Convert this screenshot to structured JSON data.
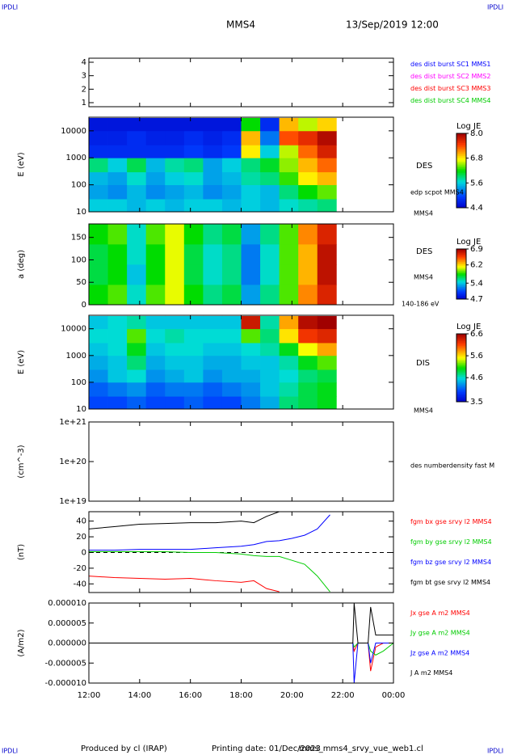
{
  "header": {
    "corner_labels": [
      "IPDLI",
      "IPDLI",
      "IPDLI",
      "IPDLI"
    ],
    "spacecraft": "MMS4",
    "date": "13/Sep/2019 12:00"
  },
  "footer": {
    "produced": "Produced by cl (IRAP)",
    "printing_date": "Printing date: 01/Dec/2023",
    "file": "mms_mms4_srvy_vue_web1.cl"
  },
  "chart_data": [
    {
      "type": "line",
      "ylim": [
        0.7,
        4.3
      ],
      "yticks": [
        1,
        2,
        3,
        4
      ],
      "series": [
        {
          "name": "des dist burst SC1 MMS1",
          "color": "#0000ff",
          "values": []
        },
        {
          "name": "des dist burst SC2 MMS2",
          "color": "#ff00ff",
          "values": []
        },
        {
          "name": "des dist burst SC3 MMS3",
          "color": "#ff0000",
          "values": []
        },
        {
          "name": "des dist burst SC4 MMS4",
          "color": "#00cc00",
          "values": []
        }
      ],
      "x": []
    },
    {
      "type": "heatmap",
      "ylabel": "E (eV)",
      "log": true,
      "ylim": [
        10,
        32000
      ],
      "yticks": [
        10,
        100,
        1000,
        10000
      ],
      "side_labels": [
        "DES",
        "edp scpot MMS4",
        "MMS4"
      ],
      "xbins": [
        12,
        12.75,
        13.5,
        14.25,
        15,
        15.75,
        16.5,
        17.25,
        18,
        18.75,
        19.5,
        20.25,
        21,
        21.75
      ],
      "ybins": [
        10,
        30,
        100,
        300,
        1000,
        3000,
        10000,
        30000
      ],
      "values": [
        [
          5.6,
          5.6,
          5.5,
          5.6,
          5.5,
          5.6,
          5.6,
          5.5,
          5.6,
          5.5,
          5.7,
          5.8,
          5.9
        ],
        [
          5.4,
          5.3,
          5.5,
          5.3,
          5.4,
          5.5,
          5.3,
          5.4,
          5.6,
          5.5,
          5.9,
          6.2,
          6.4
        ],
        [
          5.5,
          5.4,
          5.7,
          5.4,
          5.6,
          5.7,
          5.4,
          5.5,
          5.8,
          5.9,
          6.3,
          6.8,
          7.0
        ],
        [
          5.9,
          5.6,
          6.0,
          5.5,
          5.8,
          5.9,
          5.4,
          5.6,
          5.9,
          6.1,
          6.5,
          7.0,
          7.3
        ],
        [
          4.8,
          4.8,
          4.8,
          4.8,
          4.8,
          4.9,
          4.8,
          4.9,
          6.8,
          5.6,
          6.6,
          7.3,
          7.7
        ],
        [
          4.7,
          4.7,
          4.8,
          4.7,
          4.7,
          4.8,
          4.7,
          4.8,
          7.0,
          5.2,
          7.4,
          7.6,
          7.9
        ],
        [
          4.6,
          4.6,
          4.6,
          4.6,
          4.6,
          4.6,
          4.6,
          4.6,
          6.2,
          4.8,
          7.0,
          6.6,
          6.9
        ]
      ],
      "colorbar": {
        "label": "Log JE",
        "lim": [
          4.4,
          8.0
        ],
        "ticks": [
          4.4,
          5.6,
          6.8,
          {
            "value": 8,
            "label": "8.0"
          }
        ]
      }
    },
    {
      "type": "heatmap",
      "ylabel": "a (deg)",
      "ylim": [
        0,
        180
      ],
      "yticks": [
        0,
        50,
        100,
        150
      ],
      "side_labels": [
        "DES",
        "MMS4",
        "140-186 eV"
      ],
      "xbins": [
        12,
        12.75,
        13.5,
        14.25,
        15,
        15.75,
        16.5,
        17.25,
        18,
        18.75,
        19.5,
        20.25,
        21,
        21.75
      ],
      "ybins": [
        0,
        45,
        90,
        135,
        180
      ],
      "values": [
        [
          5.8,
          5.9,
          5.5,
          5.9,
          6.1,
          5.8,
          5.6,
          5.7,
          5.3,
          5.6,
          5.9,
          6.4,
          6.7
        ],
        [
          5.7,
          5.8,
          5.4,
          5.8,
          6.1,
          5.7,
          5.5,
          5.6,
          5.2,
          5.5,
          5.9,
          6.3,
          6.8
        ],
        [
          5.7,
          5.8,
          5.5,
          5.8,
          6.1,
          5.7,
          5.5,
          5.6,
          5.2,
          5.5,
          5.9,
          6.3,
          6.8
        ],
        [
          5.8,
          5.9,
          5.5,
          5.9,
          6.1,
          5.8,
          5.6,
          5.7,
          5.3,
          5.6,
          5.9,
          6.4,
          6.7
        ]
      ],
      "colorbar": {
        "label": "Log JE",
        "lim": [
          4.7,
          6.9
        ],
        "ticks": [
          4.7,
          5.4,
          6.2,
          6.9
        ]
      }
    },
    {
      "type": "heatmap",
      "ylabel": "E (eV)",
      "log": true,
      "ylim": [
        10,
        32000
      ],
      "yticks": [
        10,
        100,
        1000,
        10000
      ],
      "side_labels": [
        "DIS",
        "MMS4"
      ],
      "xbins": [
        12,
        12.75,
        13.5,
        14.25,
        15,
        15.75,
        16.5,
        17.25,
        18,
        18.75,
        19.5,
        20.25,
        21,
        21.75
      ],
      "ybins": [
        10,
        30,
        100,
        300,
        1000,
        3000,
        10000,
        30000
      ],
      "values": [
        [
          4.0,
          4.0,
          4.1,
          4.0,
          4.0,
          4.1,
          4.0,
          4.0,
          4.2,
          4.4,
          4.8,
          4.9,
          5.0
        ],
        [
          4.1,
          4.2,
          4.3,
          4.1,
          4.2,
          4.2,
          4.1,
          4.2,
          4.3,
          4.5,
          4.7,
          4.9,
          5.0
        ],
        [
          4.3,
          4.5,
          4.6,
          4.3,
          4.4,
          4.5,
          4.3,
          4.4,
          4.4,
          4.5,
          4.6,
          4.8,
          4.9
        ],
        [
          4.4,
          4.5,
          4.8,
          4.4,
          4.5,
          4.5,
          4.4,
          4.4,
          4.5,
          4.5,
          4.7,
          5.0,
          5.2
        ],
        [
          4.5,
          4.6,
          5.0,
          4.5,
          4.6,
          4.6,
          4.5,
          4.5,
          4.6,
          4.7,
          5.0,
          5.5,
          5.8
        ],
        [
          4.6,
          4.6,
          5.2,
          4.6,
          4.7,
          4.6,
          4.6,
          4.6,
          5.2,
          4.8,
          5.6,
          6.2,
          6.3
        ],
        [
          4.5,
          4.6,
          4.7,
          4.5,
          4.5,
          4.5,
          4.5,
          4.5,
          6.4,
          4.7,
          5.8,
          6.5,
          6.6
        ]
      ],
      "colorbar": {
        "label": "Log JE",
        "lim": [
          3.5,
          6.6
        ],
        "ticks": [
          3.5,
          4.6,
          5.6,
          6.6
        ]
      }
    },
    {
      "type": "line",
      "ylabel": "(cm^-3)",
      "log": true,
      "ylim": [
        1e+19,
        1e+21
      ],
      "yticks": [
        {
          "value": 1e+19,
          "label": "1e+19"
        },
        {
          "value": 1e+20,
          "label": "1e+20"
        },
        {
          "value": 1e+21,
          "label": "1e+21"
        }
      ],
      "side_labels": [
        "des numberdensity fast M"
      ],
      "x": [],
      "series": []
    },
    {
      "type": "line",
      "ylabel": "(nT)",
      "ylim": [
        -51,
        52
      ],
      "yticks": [
        -40,
        -20,
        0,
        20,
        40
      ],
      "reference_line": 0,
      "x": [
        12,
        13,
        14,
        15,
        16,
        17,
        18,
        18.5,
        19,
        19.5,
        20,
        20.5,
        21,
        21.5
      ],
      "series": [
        {
          "name": "fgm bx gse srvy l2 MMS4",
          "color": "#ff0000",
          "values": [
            -30,
            -32,
            -33,
            -34,
            -33,
            -36,
            -38,
            -36,
            -46,
            -50,
            null,
            null,
            null,
            null
          ]
        },
        {
          "name": "fgm by gse srvy l2 MMS4",
          "color": "#00cc00",
          "values": [
            1,
            1,
            1,
            1,
            0,
            0,
            -2,
            -4,
            -5,
            -5,
            -10,
            -15,
            -30,
            -50
          ]
        },
        {
          "name": "fgm bz gse srvy l2 MMS4",
          "color": "#0000ff",
          "values": [
            3,
            3,
            4,
            4,
            4,
            6,
            8,
            10,
            14,
            15,
            18,
            22,
            30,
            48
          ]
        },
        {
          "name": "fgm bt gse srvy l2 MMS4",
          "color": "#000000",
          "values": [
            30,
            33,
            36,
            37,
            38,
            38,
            40,
            38,
            46,
            52,
            null,
            null,
            null,
            null
          ]
        }
      ]
    },
    {
      "type": "line",
      "ylabel": "(A/m2)",
      "ylim": [
        -1e-05,
        1e-05
      ],
      "yticks": [
        {
          "value": -1e-05,
          "label": "-0.000010"
        },
        {
          "value": -5e-06,
          "label": "-0.000005"
        },
        {
          "value": 0,
          "label": "0.000000"
        },
        {
          "value": 5e-06,
          "label": "0.000005"
        },
        {
          "value": 1e-05,
          "label": "0.000010"
        }
      ],
      "xlim": [
        12,
        24
      ],
      "xticks": [
        {
          "value": 12,
          "label": "12:00"
        },
        {
          "value": 14,
          "label": "14:00"
        },
        {
          "value": 16,
          "label": "16:00"
        },
        {
          "value": 18,
          "label": "18:00"
        },
        {
          "value": 20,
          "label": "20:00"
        },
        {
          "value": 22,
          "label": "22:00"
        },
        {
          "value": 24,
          "label": "00:00"
        }
      ],
      "x": [
        12,
        16,
        20,
        22,
        22.4,
        22.45,
        22.6,
        23.0,
        23.1,
        23.3,
        23.6,
        24
      ],
      "series": [
        {
          "name": "Jx gse A m2 MMS4",
          "color": "#ff0000",
          "values": [
            0,
            0,
            0,
            0,
            0,
            -2e-06,
            0,
            0,
            -7e-06,
            -1e-06,
            0,
            0
          ]
        },
        {
          "name": "Jy gse A m2 MMS4",
          "color": "#00cc00",
          "values": [
            0,
            0,
            0,
            0,
            0,
            -1e-06,
            0,
            0,
            -2e-06,
            -3e-06,
            -2e-06,
            0
          ]
        },
        {
          "name": "Jz gse A m2 MMS4",
          "color": "#0000ff",
          "values": [
            0,
            0,
            0,
            0,
            0,
            -1e-05,
            0,
            0,
            -5e-06,
            0,
            0,
            0
          ]
        },
        {
          "name": "J A m2 MMS4",
          "color": "#000000",
          "values": [
            0,
            0,
            0,
            0,
            0,
            1e-05,
            0,
            0,
            9e-06,
            2e-06,
            2e-06,
            2e-06
          ]
        }
      ]
    }
  ]
}
